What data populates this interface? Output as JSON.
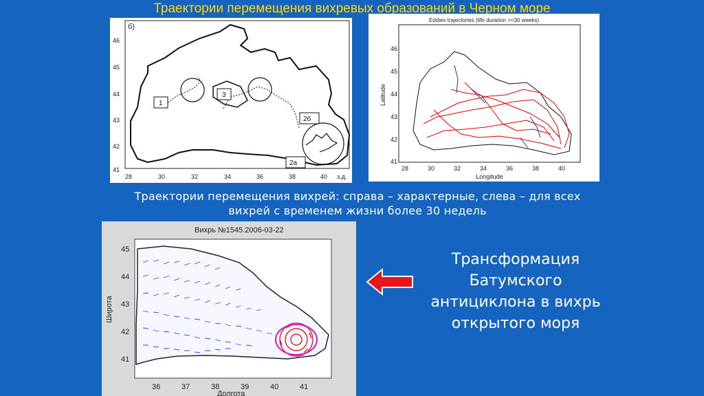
{
  "slide": {
    "title": "Траектории перемещения вихревых образований в Черном море",
    "caption_line1": "Траектории перемещения вихрей: справа – характерные, слева – для всех",
    "caption_line2": "вихрей с временем жизни более 30 недель",
    "right_text": [
      "Трансформация",
      "Батумского",
      "антициклона в вихрь",
      "открытого моря"
    ],
    "colors": {
      "background": "#1565c0",
      "title": "#ffd800",
      "arrow": "#e8141a"
    }
  },
  "map_left": {
    "panel_label": "б)",
    "axis_x_unit": "з.д.",
    "x_ticks": [
      "28",
      "30",
      "32",
      "34",
      "36",
      "38",
      "40"
    ],
    "y_ticks": [
      "46",
      "45",
      "44",
      "43",
      "42",
      "41"
    ],
    "annotations": [
      "1",
      "3",
      "2б",
      "2а"
    ]
  },
  "map_right": {
    "title": "Eddies trajectories (life duration >=30 weeks)",
    "xlabel": "Longitude",
    "ylabel": "Latitude",
    "x_ticks": [
      "28",
      "30",
      "32",
      "34",
      "36",
      "38",
      "40"
    ],
    "y_ticks": [
      "46",
      "45",
      "44",
      "43",
      "42",
      "41"
    ]
  },
  "map_bottom": {
    "title": "Вихрь №1545.2006-03-22",
    "xlabel": "Долгота",
    "ylabel": "Широта",
    "x_ticks": [
      "36",
      "37",
      "38",
      "39",
      "40",
      "41"
    ],
    "y_ticks": [
      "45",
      "44",
      "43",
      "42",
      "41"
    ]
  }
}
